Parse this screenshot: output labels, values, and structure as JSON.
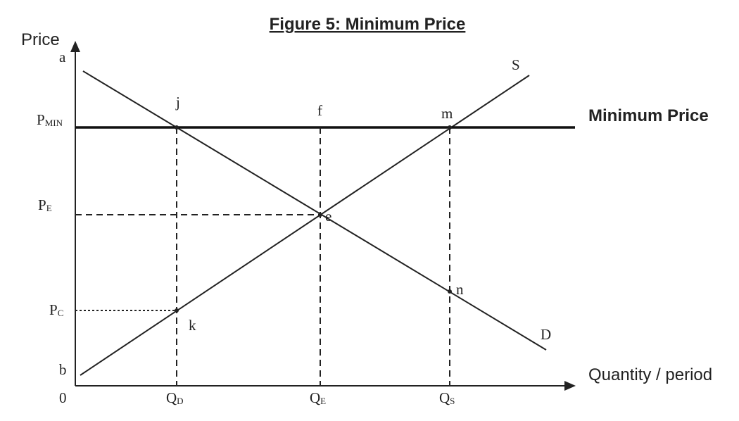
{
  "figure": {
    "title": "Figure 5: Minimum Price",
    "y_axis_title": "Price",
    "x_axis_title": "Quantity / period",
    "origin_label": "0",
    "min_price_label": "Minimum Price"
  },
  "price_labels": {
    "a": "a",
    "b": "b",
    "p_min": {
      "main": "P",
      "sub": "MIN"
    },
    "p_e": {
      "main": "P",
      "sub": "E"
    },
    "p_c": {
      "main": "P",
      "sub": "C"
    }
  },
  "quantity_labels": {
    "q_d": {
      "main": "Q",
      "sub": "D"
    },
    "q_e": {
      "main": "Q",
      "sub": "E"
    },
    "q_s": {
      "main": "Q",
      "sub": "S"
    }
  },
  "point_labels": {
    "j": "j",
    "f": "f",
    "m": "m",
    "e": "e",
    "n": "n",
    "k": "k"
  },
  "curve_labels": {
    "supply": "S",
    "demand": "D"
  }
}
